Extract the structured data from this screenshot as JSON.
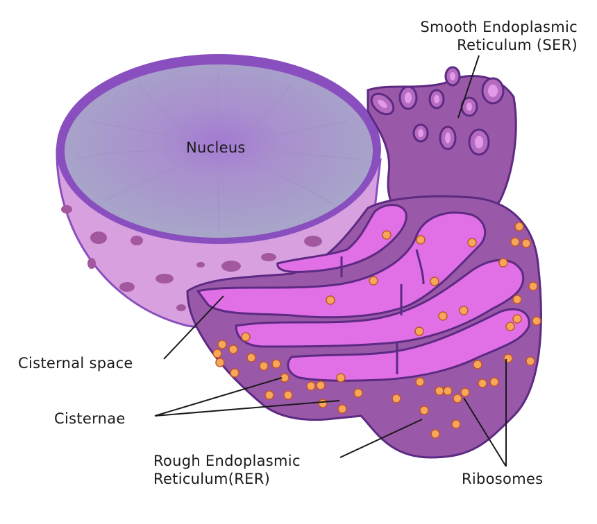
{
  "labels": {
    "nucleus": "Nucleus",
    "ser_line1": "Smooth Endoplasmic",
    "ser_line2": "Reticulum (SER)",
    "cisternal_space": "Cisternal space",
    "cisternae": "Cisternae",
    "rer_line1": "Rough Endoplasmic",
    "rer_line2": "Reticulum(RER)",
    "ribosomes": "Ribosomes"
  },
  "colors": {
    "nucleus_face": "#a8a6c9",
    "nucleus_center": "#a47ad2",
    "nuclear_rim": "#8a4fbf",
    "nuclear_envelope": "#d9a0e0",
    "envelope_pores": "#a2579f",
    "er_outer": "#9a58a8",
    "er_lumen": "#e170e6",
    "er_outline": "#5c2a82",
    "ribosome": "#f6a85a",
    "leader_line": "#1a1a1a"
  }
}
